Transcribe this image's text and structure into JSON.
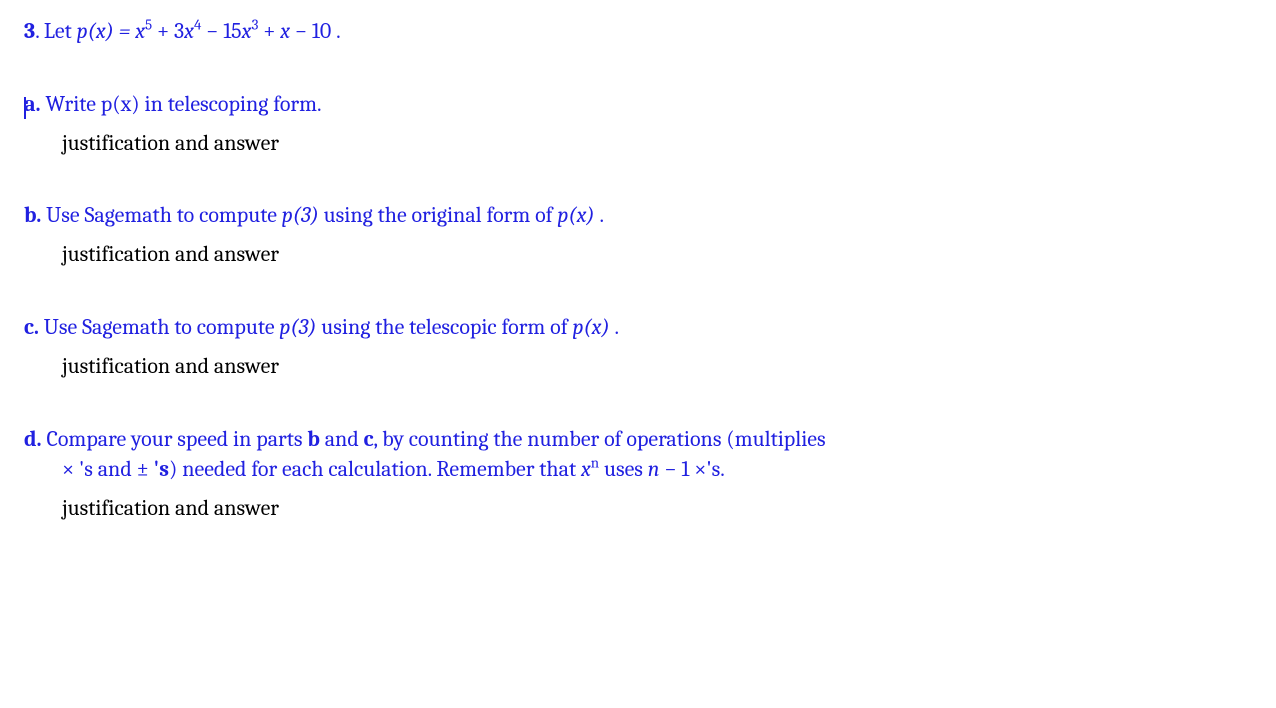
{
  "colors": {
    "prompt": "#2020e0",
    "answer": "#000000",
    "background": "#ffffff"
  },
  "typography": {
    "font_family": "Cambria, Georgia, 'Times New Roman', serif",
    "font_size_pt": 17,
    "sup_scale": 0.68
  },
  "problem": {
    "number": "3",
    "lead_text": ". Let ",
    "polynomial_lhs": "p(x) = ",
    "polynomial_terms": [
      {
        "coef": "",
        "var": "x",
        "exp": "5",
        "sign": ""
      },
      {
        "coef": "3",
        "var": "x",
        "exp": "4",
        "sign": " + "
      },
      {
        "coef": "15",
        "var": "x",
        "exp": "3",
        "sign": " − "
      },
      {
        "coef": "",
        "var": "x",
        "exp": "",
        "sign": " + "
      },
      {
        "coef": "10",
        "var": "",
        "exp": "",
        "sign": " − "
      }
    ],
    "trailing_period": " ."
  },
  "parts": {
    "a": {
      "label": "a.",
      "prompt": " Write p(x) in telescoping form.",
      "answer": "justification and answer"
    },
    "b": {
      "label": "b.",
      "prompt_before_p3": " Use Sagemath to compute ",
      "p3": "p(3)",
      "prompt_mid": "  using the original form of ",
      "px": "p(x)",
      "prompt_after": " .",
      "answer": "justification and answer"
    },
    "c": {
      "label": "c.",
      "prompt_before_p3": " Use Sagemath to compute ",
      "p3": "p(3)",
      "prompt_mid": "  using the telescopic form of ",
      "px": "p(x)",
      "prompt_after": " .",
      "answer": "justification and answer"
    },
    "d": {
      "label": "d.",
      "line1_before": " Compare your speed in parts ",
      "b_ref": "b",
      "line1_mid": " and ",
      "c_ref": "c",
      "line1_after": ", by counting the number of operations (multiplies",
      "line2_times": "×",
      "line2_s1": " 's and ",
      "line2_pm": "±",
      "line2_s_bold": " 's",
      "line2_paren": ") needed for each calculation. Remember that ",
      "xn_x": "x",
      "xn_n": "n",
      "line2_uses": "  uses ",
      "n": "n",
      "minus_one": " − 1  ",
      "times2": "×",
      "line2_end": "'s.",
      "answer": "justification and answer"
    }
  }
}
